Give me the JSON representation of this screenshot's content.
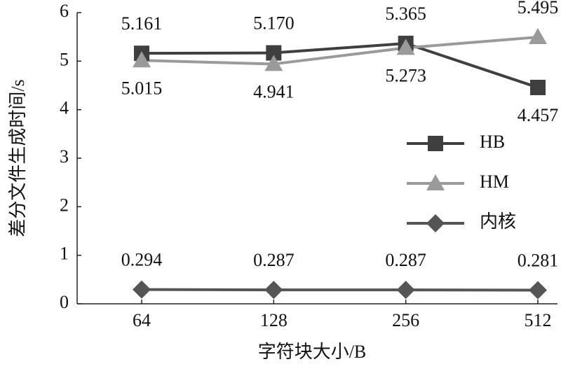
{
  "chart_data": {
    "type": "line",
    "x_label": "字符块大小/B",
    "y_label": "差分文件生成时间/s",
    "categories": [
      "64",
      "128",
      "256",
      "512"
    ],
    "series": [
      {
        "name": "HB",
        "color": "#3f3f3f",
        "marker": "square",
        "values": [
          5.161,
          5.17,
          5.365,
          4.457
        ],
        "value_labels": [
          "5.161",
          "5.170",
          "5.365",
          "4.457"
        ]
      },
      {
        "name": "HM",
        "color": "#9a9a9a",
        "marker": "triangle",
        "values": [
          5.015,
          4.941,
          5.273,
          5.495
        ],
        "value_labels": [
          "5.015",
          "4.941",
          "5.273",
          "5.495"
        ]
      },
      {
        "name": "内核",
        "color": "#555555",
        "marker": "diamond",
        "values": [
          0.294,
          0.287,
          0.287,
          0.281
        ],
        "value_labels": [
          "0.294",
          "0.287",
          "0.287",
          "0.281"
        ]
      }
    ],
    "ylim": [
      0,
      6
    ],
    "yticks": [
      0,
      1,
      2,
      3,
      4,
      5,
      6
    ],
    "grid": false,
    "legend": "right"
  }
}
